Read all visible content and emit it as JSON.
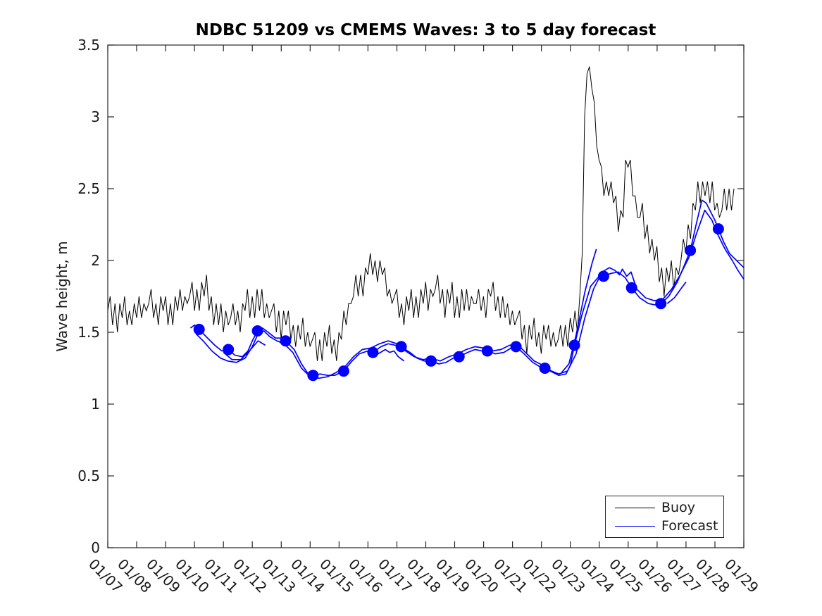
{
  "chart_data": {
    "type": "line",
    "title": "NDBC 51209 vs CMEMS Waves: 3 to 5 day forecast",
    "xlabel": "",
    "ylabel": "Wave height, m",
    "grid": "off",
    "x_tick_labels": [
      "01/07",
      "01/08",
      "01/09",
      "01/10",
      "01/11",
      "01/12",
      "01/13",
      "01/14",
      "01/15",
      "01/16",
      "01/17",
      "01/18",
      "01/19",
      "01/20",
      "01/21",
      "01/22",
      "01/23",
      "01/24",
      "01/25",
      "01/26",
      "01/27",
      "01/28",
      "01/29"
    ],
    "x_range_days": [
      0,
      22
    ],
    "x_tick_label_rotation_deg": 45,
    "y_ticks": [
      0,
      0.5,
      1,
      1.5,
      2,
      2.5,
      3,
      3.5
    ],
    "y_range": [
      0,
      3.5
    ],
    "axis_color": "#262626",
    "legend": {
      "position": "lower-right",
      "entries": [
        {
          "label": "Buoy",
          "color": "#000000",
          "line_width": 1.2
        },
        {
          "label": "Forecast",
          "color": "#0000ff",
          "line_width": 1.7
        }
      ]
    },
    "series": {
      "buoy": {
        "name": "Buoy",
        "color": "#000000",
        "line_width": 1,
        "x_start": 0,
        "x_end": 21.7,
        "trend": [
          [
            0,
            1.63
          ],
          [
            0.5,
            1.62
          ],
          [
            1,
            1.66
          ],
          [
            1.5,
            1.68
          ],
          [
            2,
            1.64
          ],
          [
            2.5,
            1.7
          ],
          [
            3,
            1.74
          ],
          [
            3.4,
            1.78
          ],
          [
            3.8,
            1.6
          ],
          [
            4.2,
            1.58
          ],
          [
            4.6,
            1.62
          ],
          [
            5,
            1.74
          ],
          [
            5.4,
            1.7
          ],
          [
            5.8,
            1.58
          ],
          [
            6.2,
            1.56
          ],
          [
            6.6,
            1.5
          ],
          [
            7,
            1.44
          ],
          [
            7.3,
            1.38
          ],
          [
            7.6,
            1.42
          ],
          [
            8,
            1.44
          ],
          [
            8.4,
            1.72
          ],
          [
            8.8,
            1.86
          ],
          [
            9.2,
            1.98
          ],
          [
            9.5,
            1.92
          ],
          [
            9.8,
            1.74
          ],
          [
            10.2,
            1.66
          ],
          [
            10.6,
            1.7
          ],
          [
            11,
            1.74
          ],
          [
            11.4,
            1.78
          ],
          [
            11.8,
            1.7
          ],
          [
            12.2,
            1.72
          ],
          [
            12.6,
            1.7
          ],
          [
            13,
            1.72
          ],
          [
            13.4,
            1.76
          ],
          [
            13.8,
            1.62
          ],
          [
            14.2,
            1.56
          ],
          [
            14.6,
            1.46
          ],
          [
            15,
            1.48
          ],
          [
            15.5,
            1.44
          ],
          [
            16,
            1.5
          ],
          [
            16.3,
            1.6
          ],
          [
            16.38,
            1.9
          ],
          [
            16.45,
            2.55
          ],
          [
            16.5,
            3.0
          ],
          [
            16.55,
            3.5
          ],
          [
            16.62,
            3.1
          ],
          [
            16.7,
            3.4
          ],
          [
            16.78,
            3.15
          ],
          [
            16.9,
            2.85
          ],
          [
            17.05,
            2.58
          ],
          [
            17.2,
            2.5
          ],
          [
            17.35,
            2.55
          ],
          [
            17.5,
            2.4
          ],
          [
            17.65,
            2.28
          ],
          [
            17.8,
            2.35
          ],
          [
            17.95,
            2.72
          ],
          [
            18.1,
            2.6
          ],
          [
            18.3,
            2.35
          ],
          [
            18.55,
            2.25
          ],
          [
            18.75,
            2.15
          ],
          [
            19,
            1.95
          ],
          [
            19.2,
            1.9
          ],
          [
            19.45,
            1.87
          ],
          [
            19.7,
            1.92
          ],
          [
            19.95,
            2.05
          ],
          [
            20.2,
            2.3
          ],
          [
            20.45,
            2.45
          ],
          [
            20.65,
            2.58
          ],
          [
            20.8,
            2.45
          ],
          [
            21,
            2.42
          ],
          [
            21.2,
            2.32
          ],
          [
            21.35,
            2.38
          ],
          [
            21.5,
            2.47
          ],
          [
            21.7,
            2.44
          ]
        ],
        "noise": {
          "amplitude": 0.12,
          "pattern": [
            0.1,
            0.9,
            -0.55,
            0.45,
            -0.95,
            0.65,
            -0.15,
            1.0,
            -0.75,
            0.25,
            -1.0,
            0.55,
            -0.35,
            0.85,
            -0.65,
            0.35,
            -0.2
          ],
          "step_days": 0.0833,
          "quantize": 0.05
        }
      },
      "forecast": {
        "name": "Forecast",
        "color": "#0000ff",
        "line_width": 1.7,
        "runs": [
          [
            [
              2.86,
              1.53
            ],
            [
              3.0,
              1.55
            ],
            [
              3.16,
              1.52
            ],
            [
              3.4,
              1.47
            ],
            [
              3.7,
              1.41
            ],
            [
              3.95,
              1.37
            ],
            [
              4.17,
              1.38
            ],
            [
              4.4,
              1.34
            ],
            [
              4.65,
              1.33
            ],
            [
              4.85,
              1.37
            ],
            [
              5.0,
              1.44
            ],
            [
              5.18,
              1.51
            ],
            [
              5.35,
              1.53
            ],
            [
              5.55,
              1.5
            ],
            [
              5.8,
              1.46
            ],
            [
              6.0,
              1.46
            ],
            [
              6.15,
              1.44
            ],
            [
              6.45,
              1.38
            ],
            [
              6.7,
              1.28
            ],
            [
              6.9,
              1.22
            ],
            [
              7.1,
              1.2
            ],
            [
              7.35,
              1.21
            ],
            [
              7.6,
              1.2
            ],
            [
              7.85,
              1.2
            ],
            [
              8.16,
              1.23
            ],
            [
              8.45,
              1.3
            ],
            [
              8.7,
              1.35
            ],
            [
              9.0,
              1.37
            ],
            [
              9.17,
              1.36
            ],
            [
              9.45,
              1.4
            ],
            [
              9.7,
              1.42
            ],
            [
              9.95,
              1.41
            ],
            [
              10.15,
              1.4
            ],
            [
              10.45,
              1.36
            ],
            [
              10.7,
              1.32
            ],
            [
              10.95,
              1.3
            ],
            [
              11.18,
              1.3
            ],
            [
              11.45,
              1.28
            ],
            [
              11.7,
              1.29
            ],
            [
              11.95,
              1.32
            ],
            [
              12.15,
              1.33
            ],
            [
              12.45,
              1.36
            ],
            [
              12.7,
              1.38
            ],
            [
              12.95,
              1.37
            ],
            [
              13.13,
              1.37
            ],
            [
              13.4,
              1.35
            ],
            [
              13.7,
              1.36
            ],
            [
              13.95,
              1.39
            ],
            [
              14.12,
              1.4
            ],
            [
              14.4,
              1.35
            ],
            [
              14.7,
              1.29
            ],
            [
              14.95,
              1.26
            ],
            [
              15.12,
              1.25
            ],
            [
              15.4,
              1.22
            ],
            [
              15.6,
              1.2
            ],
            [
              15.85,
              1.21
            ],
            [
              16.0,
              1.27
            ],
            [
              16.14,
              1.41
            ],
            [
              16.4,
              1.62
            ],
            [
              16.7,
              1.82
            ],
            [
              16.95,
              1.88
            ],
            [
              17.15,
              1.89
            ],
            [
              17.4,
              1.91
            ],
            [
              17.65,
              1.92
            ],
            [
              17.9,
              1.88
            ],
            [
              18.12,
              1.81
            ],
            [
              18.4,
              1.74
            ],
            [
              18.7,
              1.7
            ],
            [
              18.95,
              1.69
            ],
            [
              19.13,
              1.7
            ],
            [
              19.4,
              1.75
            ],
            [
              19.7,
              1.85
            ],
            [
              19.95,
              1.97
            ],
            [
              20.15,
              2.07
            ],
            [
              20.35,
              2.25
            ],
            [
              20.55,
              2.42
            ],
            [
              20.7,
              2.4
            ],
            [
              20.85,
              2.34
            ],
            [
              21.0,
              2.28
            ],
            [
              21.12,
              2.22
            ],
            [
              21.3,
              2.13
            ],
            [
              21.5,
              2.05
            ],
            [
              21.75,
              2.0
            ],
            [
              22.0,
              1.95
            ]
          ],
          [
            [
              3.05,
              1.49
            ],
            [
              3.3,
              1.44
            ],
            [
              3.6,
              1.37
            ],
            [
              3.9,
              1.32
            ],
            [
              4.15,
              1.3
            ],
            [
              4.45,
              1.29
            ],
            [
              4.75,
              1.32
            ],
            [
              5.0,
              1.4
            ],
            [
              5.2,
              1.49
            ],
            [
              5.4,
              1.51
            ],
            [
              5.6,
              1.47
            ],
            [
              5.85,
              1.44
            ],
            [
              6.1,
              1.42
            ],
            [
              6.4,
              1.36
            ],
            [
              6.7,
              1.25
            ],
            [
              7.0,
              1.19
            ],
            [
              7.3,
              1.18
            ],
            [
              7.6,
              1.19
            ],
            [
              7.9,
              1.22
            ],
            [
              8.2,
              1.26
            ],
            [
              8.5,
              1.33
            ],
            [
              8.8,
              1.38
            ],
            [
              9.1,
              1.39
            ],
            [
              9.4,
              1.42
            ],
            [
              9.7,
              1.44
            ],
            [
              10.0,
              1.42
            ],
            [
              10.3,
              1.37
            ],
            [
              10.6,
              1.33
            ],
            [
              10.9,
              1.31
            ],
            [
              11.2,
              1.32
            ],
            [
              11.5,
              1.3
            ],
            [
              11.8,
              1.33
            ],
            [
              12.1,
              1.35
            ],
            [
              12.4,
              1.38
            ],
            [
              12.7,
              1.4
            ],
            [
              13.0,
              1.39
            ],
            [
              13.3,
              1.37
            ],
            [
              13.6,
              1.38
            ],
            [
              13.9,
              1.41
            ],
            [
              14.15,
              1.42
            ],
            [
              14.45,
              1.36
            ],
            [
              14.75,
              1.3
            ],
            [
              15.05,
              1.27
            ],
            [
              15.35,
              1.23
            ],
            [
              15.6,
              1.21
            ],
            [
              15.9,
              1.23
            ],
            [
              16.2,
              1.35
            ],
            [
              16.5,
              1.6
            ],
            [
              16.8,
              1.8
            ],
            [
              17.1,
              1.92
            ],
            [
              17.35,
              1.95
            ],
            [
              17.55,
              1.93
            ],
            [
              17.7,
              1.9
            ],
            [
              17.8,
              1.94
            ],
            [
              17.95,
              1.89
            ],
            [
              18.1,
              1.92
            ],
            [
              18.3,
              1.8
            ],
            [
              18.6,
              1.74
            ],
            [
              18.9,
              1.72
            ],
            [
              19.2,
              1.73
            ],
            [
              19.5,
              1.8
            ],
            [
              19.8,
              1.9
            ],
            [
              20.1,
              2.02
            ],
            [
              20.35,
              2.18
            ],
            [
              20.65,
              2.35
            ],
            [
              20.9,
              2.28
            ],
            [
              21.1,
              2.18
            ],
            [
              21.35,
              2.08
            ],
            [
              21.6,
              2.0
            ],
            [
              21.8,
              1.93
            ],
            [
              22.0,
              1.87
            ]
          ],
          [
            [
              4.0,
              1.36
            ],
            [
              4.3,
              1.31
            ],
            [
              4.6,
              1.31
            ],
            [
              4.9,
              1.37
            ],
            [
              5.2,
              1.44
            ],
            [
              5.45,
              1.41
            ]
          ],
          [
            [
              9.35,
              1.35
            ],
            [
              9.6,
              1.38
            ],
            [
              9.75,
              1.36
            ],
            [
              9.9,
              1.37
            ],
            [
              10.05,
              1.33
            ],
            [
              10.25,
              1.3
            ]
          ],
          [
            [
              15.7,
              1.22
            ],
            [
              15.95,
              1.28
            ],
            [
              16.2,
              1.48
            ],
            [
              16.5,
              1.78
            ],
            [
              16.75,
              1.98
            ],
            [
              16.9,
              2.08
            ]
          ],
          [
            [
              19.35,
              1.7
            ],
            [
              19.6,
              1.74
            ],
            [
              19.85,
              1.81
            ],
            [
              20.0,
              1.85
            ]
          ]
        ],
        "markers": {
          "radius_px": 8,
          "x": [
            3.16,
            4.17,
            5.18,
            6.15,
            7.1,
            8.16,
            9.17,
            10.15,
            11.18,
            12.15,
            13.13,
            14.12,
            15.12,
            16.14,
            17.15,
            18.12,
            19.13,
            20.15,
            21.12
          ],
          "y": [
            1.52,
            1.38,
            1.51,
            1.44,
            1.2,
            1.23,
            1.36,
            1.4,
            1.3,
            1.33,
            1.37,
            1.4,
            1.25,
            1.41,
            1.89,
            1.81,
            1.7,
            2.07,
            2.22
          ]
        }
      }
    }
  }
}
